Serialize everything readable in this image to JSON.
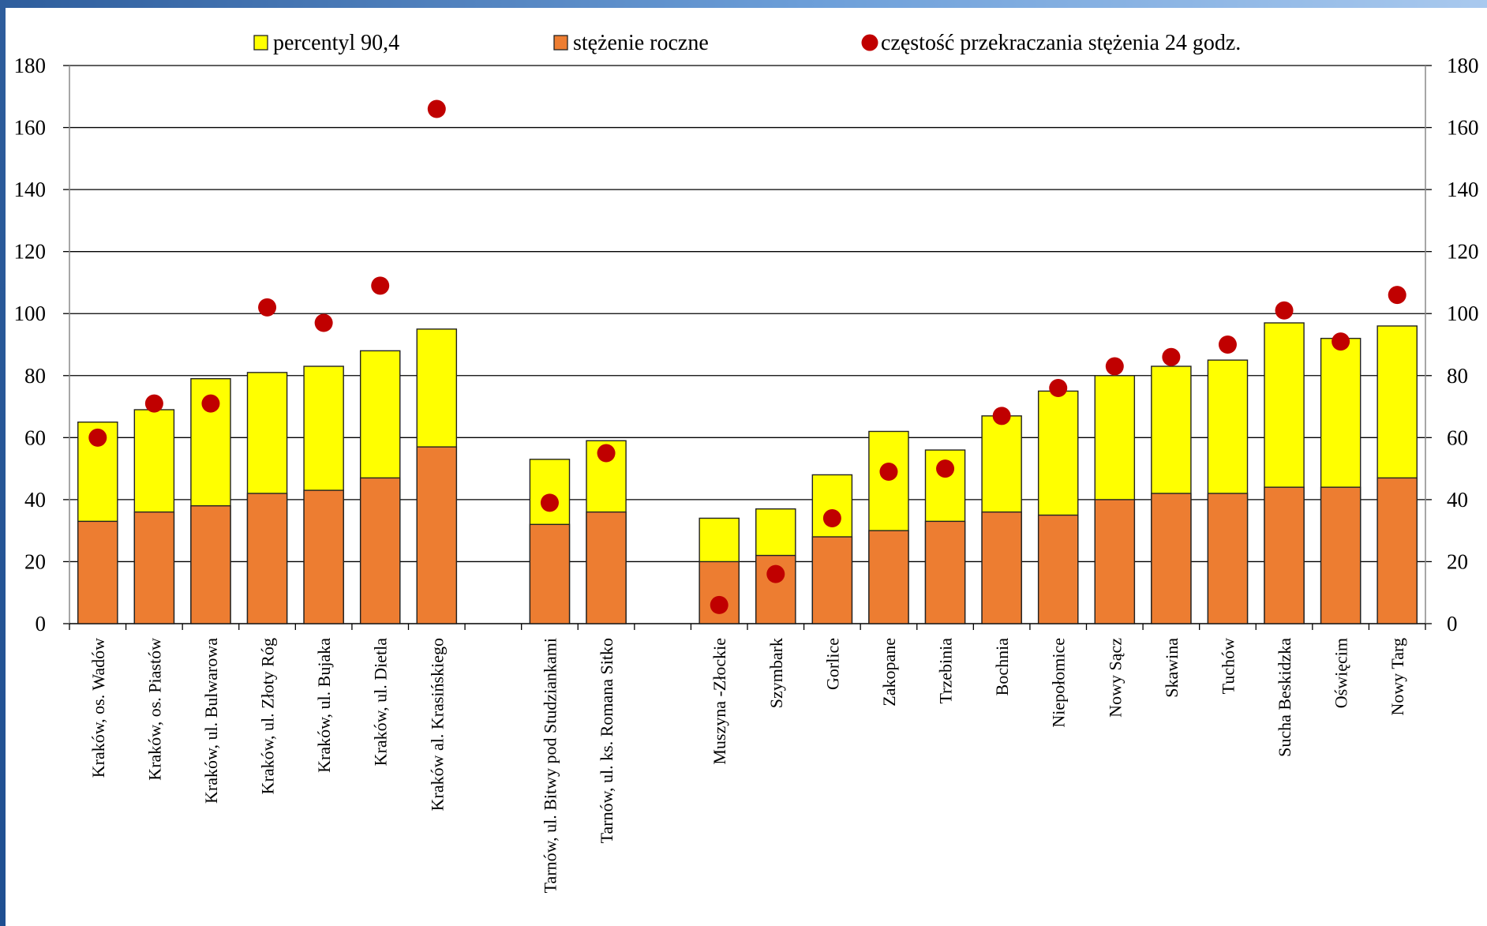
{
  "chart_data": {
    "type": "bar",
    "stacked": true,
    "title": "",
    "xlabel": "",
    "ylabel": "",
    "ylim": [
      0,
      180
    ],
    "y_ticks": [
      0,
      20,
      40,
      60,
      80,
      100,
      120,
      140,
      160,
      180
    ],
    "secondary_y": {
      "ylim": [
        0,
        180
      ],
      "ticks": [
        0,
        20,
        40,
        60,
        80,
        100,
        120,
        140,
        160,
        180
      ]
    },
    "grid": true,
    "legend_position": "top",
    "categories": [
      "Kraków, os. Wadów",
      "Kraków, os. Piastów",
      "Kraków, ul. Bulwarowa",
      "Kraków, ul. Złoty Róg",
      "Kraków, ul. Bujaka",
      "Kraków, ul. Dietla",
      "Kraków al. Krasińskiego",
      "",
      "Tarnów, ul. Bitwy pod Studziankami",
      "Tarnów, ul. ks. Romana Sitko",
      "",
      "Muszyna -Złockie",
      "Szymbark",
      "Gorlice",
      "Zakopane",
      "Trzebinia",
      "Bochnia",
      "Niepołomice",
      "Nowy Sącz",
      "Skawina",
      "Tuchów",
      "Sucha Beskidzka",
      "Oświęcim",
      "Nowy Targ"
    ],
    "series": [
      {
        "name": "percentyl 90,4",
        "kind": "bar",
        "color": "#ffff00",
        "values": [
          65,
          69,
          79,
          81,
          83,
          88,
          95,
          null,
          53,
          59,
          null,
          34,
          37,
          48,
          62,
          56,
          67,
          75,
          80,
          83,
          85,
          97,
          92,
          96
        ]
      },
      {
        "name": "stężenie roczne",
        "kind": "bar",
        "color": "#ed7d31",
        "values": [
          33,
          36,
          38,
          42,
          43,
          47,
          57,
          null,
          32,
          36,
          null,
          20,
          22,
          28,
          30,
          33,
          36,
          35,
          40,
          42,
          42,
          44,
          44,
          47
        ]
      },
      {
        "name": "częstość przekraczania stężenia 24 godz.",
        "kind": "scatter",
        "color": "#c00000",
        "values": [
          60,
          71,
          71,
          102,
          97,
          109,
          166,
          null,
          39,
          55,
          null,
          6,
          16,
          34,
          49,
          50,
          67,
          76,
          83,
          86,
          90,
          101,
          91,
          106
        ]
      }
    ]
  }
}
